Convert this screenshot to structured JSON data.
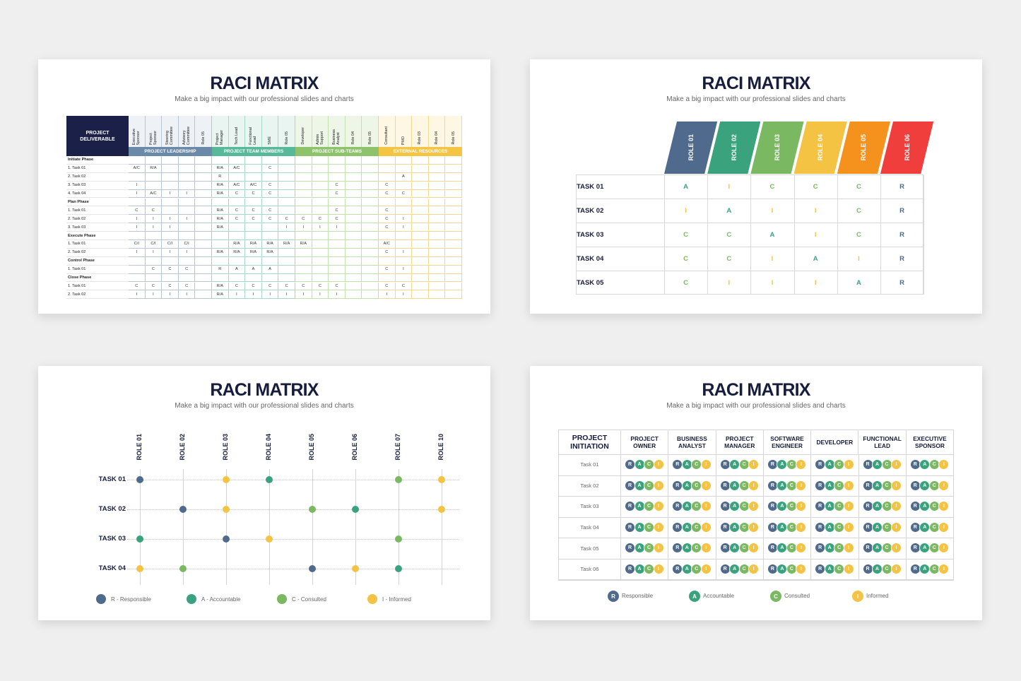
{
  "colors": {
    "navy": "#1b2049",
    "slate": "#4f6a8c",
    "teal": "#3aa37e",
    "green": "#7ab862",
    "yellow": "#f5c343",
    "orange": "#f5921d",
    "red": "#ef3e3c",
    "s1_grp_lead": "#6b8aaa",
    "s1_grp_team": "#58b99a",
    "s1_grp_sub": "#8ec36c",
    "s1_grp_ext": "#f4c545"
  },
  "slide1": {
    "title": "RACI MATRIX",
    "subtitle": "Make a big impact with our professional slides and charts",
    "corner_label": "PROJECT DELIVERABLE",
    "groups": [
      {
        "name": "PROJECT LEADERSHIP",
        "span": 5
      },
      {
        "name": "PROJECT TEAM MEMBERS",
        "span": 5
      },
      {
        "name": "PROJECT SUB-TEAMS",
        "span": 5
      },
      {
        "name": "EXTERNAL RESOURCES",
        "span": 5
      }
    ],
    "roles": [
      "Executive\nSponsor",
      "Project\nSponsor",
      "Steering\nCommittee",
      "Advisory\nCommittee",
      "Role 05",
      "Project\nManager",
      "Tech Lead",
      "Functional\nLead",
      "SME",
      "Role 05",
      "Developer",
      "Admin\nSupport",
      "Business\nAnalyst",
      "Role 04",
      "Role 05",
      "Consultant",
      "PMO",
      "Role 03",
      "Role 04",
      "Role 05"
    ],
    "rows": [
      {
        "task": "Initiate Phase",
        "phase": true,
        "cells": []
      },
      {
        "task": "1. Task 01",
        "cells": [
          "A/C",
          "R/A",
          "",
          "",
          "",
          "R/A",
          "A/C",
          "",
          "C",
          "",
          "",
          "",
          "",
          "",
          "",
          "",
          "",
          "",
          "",
          ""
        ]
      },
      {
        "task": "2. Task 02",
        "cells": [
          "",
          "",
          "",
          "",
          "",
          "R",
          "",
          "",
          "",
          "",
          "",
          "",
          "",
          "",
          "",
          "",
          "A",
          "",
          "",
          ""
        ]
      },
      {
        "task": "3. Task 03",
        "cells": [
          "I",
          "",
          "",
          "",
          "",
          "R/A",
          "A/C",
          "A/C",
          "C",
          "",
          "",
          "",
          "C",
          "",
          "",
          "C",
          "",
          "",
          "",
          ""
        ]
      },
      {
        "task": "4. Task 04",
        "cells": [
          "I",
          "A/C",
          "I",
          "I",
          "",
          "R/A",
          "C",
          "C",
          "C",
          "",
          "",
          "",
          "C",
          "",
          "",
          "C",
          "C",
          "",
          "",
          ""
        ]
      },
      {
        "task": "Plan Phase",
        "phase": true,
        "cells": []
      },
      {
        "task": "1. Task 01",
        "cells": [
          "C",
          "C",
          "",
          "",
          "",
          "R/A",
          "C",
          "C",
          "C",
          "",
          "",
          "",
          "C",
          "",
          "",
          "C",
          "",
          "",
          "",
          ""
        ]
      },
      {
        "task": "2. Task 02",
        "cells": [
          "I",
          "I",
          "I",
          "I",
          "",
          "R/A",
          "C",
          "C",
          "C",
          "C",
          "C",
          "C",
          "C",
          "",
          "",
          "C",
          "I",
          "",
          "",
          ""
        ]
      },
      {
        "task": "3. Task 03",
        "cells": [
          "I",
          "I",
          "I",
          "",
          "",
          "R/A",
          "",
          "",
          "",
          "I",
          "I",
          "I",
          "I",
          "",
          "",
          "C",
          "I",
          "",
          "",
          ""
        ]
      },
      {
        "task": "Execute Phase",
        "phase": true,
        "cells": []
      },
      {
        "task": "1. Task 01",
        "cells": [
          "C/I",
          "C/I",
          "C/I",
          "C/I",
          "",
          "",
          "R/A",
          "R/A",
          "R/A",
          "R/A",
          "R/A",
          "",
          "",
          "",
          "",
          "A/C",
          "",
          "",
          "",
          ""
        ]
      },
      {
        "task": "2. Task 02",
        "cells": [
          "I",
          "I",
          "I",
          "I",
          "",
          "R/A",
          "R/A",
          "R/A",
          "R/A",
          "",
          "",
          "",
          "",
          "",
          "",
          "C",
          "I",
          "",
          "",
          ""
        ]
      },
      {
        "task": "Control Phase",
        "phase": true,
        "cells": []
      },
      {
        "task": "1. Task 01",
        "cells": [
          "",
          "C",
          "C",
          "C",
          "",
          "R",
          "A",
          "A",
          "A",
          "",
          "",
          "",
          "",
          "",
          "",
          "C",
          "I",
          "",
          "",
          ""
        ]
      },
      {
        "task": "Close Phase",
        "phase": true,
        "cells": []
      },
      {
        "task": "1. Task 01",
        "cells": [
          "C",
          "C",
          "C",
          "C",
          "",
          "R/A",
          "C",
          "C",
          "C",
          "C",
          "C",
          "C",
          "C",
          "",
          "",
          "C",
          "C",
          "",
          "",
          ""
        ]
      },
      {
        "task": "2. Task 02",
        "cells": [
          "I",
          "I",
          "I",
          "I",
          "",
          "R/A",
          "I",
          "I",
          "I",
          "I",
          "I",
          "I",
          "I",
          "",
          "",
          "I",
          "I",
          "",
          "",
          ""
        ]
      }
    ]
  },
  "slide2": {
    "title": "RACI MATRIX",
    "subtitle": "Make a big impact with our professional slides and charts",
    "roles": [
      "ROLE 01",
      "ROLE 02",
      "ROLE 03",
      "ROLE 04",
      "ROLE 05",
      "ROLE 06"
    ],
    "tasks": [
      "TASK 01",
      "TASK 02",
      "TASK 03",
      "TASK 04",
      "TASK 05"
    ],
    "values": [
      [
        "A",
        "I",
        "C",
        "C",
        "C",
        "R"
      ],
      [
        "I",
        "A",
        "I",
        "I",
        "C",
        "R"
      ],
      [
        "C",
        "C",
        "A",
        "I",
        "C",
        "R"
      ],
      [
        "C",
        "C",
        "I",
        "A",
        "I",
        "R"
      ],
      [
        "C",
        "I",
        "I",
        "I",
        "A",
        "R"
      ]
    ]
  },
  "slide3": {
    "title": "RACI MATRIX",
    "subtitle": "Make a big impact with our professional slides and charts",
    "roles": [
      "ROLE 01",
      "ROLE 02",
      "ROLE 03",
      "ROLE 04",
      "ROLE 05",
      "ROLE 06",
      "ROLE 07",
      "ROLE 10"
    ],
    "tasks": [
      "TASK 01",
      "TASK 02",
      "TASK 03",
      "TASK 04"
    ],
    "dots": [
      [
        "R",
        "",
        "I",
        "A",
        "",
        "",
        "C",
        "I"
      ],
      [
        "",
        "R",
        "I",
        "",
        "C",
        "A",
        "",
        "I"
      ],
      [
        "A",
        "",
        "R",
        "I",
        "",
        "",
        "C",
        ""
      ],
      [
        "I",
        "C",
        "",
        "",
        "R",
        "I",
        "A",
        ""
      ]
    ],
    "legend": [
      {
        "key": "R",
        "label": "R - Responsible"
      },
      {
        "key": "A",
        "label": "A - Accountable"
      },
      {
        "key": "C",
        "label": "C - Consulted"
      },
      {
        "key": "I",
        "label": "I - Informed"
      }
    ]
  },
  "slide4": {
    "title": "RACI MATRIX",
    "subtitle": "Make a big impact with our professional slides and charts",
    "corner_label": "PROJECT INITIATION",
    "columns": [
      "PROJECT OWNER",
      "BUSINESS ANALYST",
      "PROJECT MANAGER",
      "SOFTWARE ENGINEER",
      "DEVELOPER",
      "FUNCTIONAL LEAD",
      "EXECUTIVE SPONSOR"
    ],
    "tasks": [
      "Task 01",
      "Task 02",
      "Task 03",
      "Task 04",
      "Task 05",
      "Task 06"
    ],
    "letters": [
      "R",
      "A",
      "C",
      "I"
    ],
    "legend": [
      {
        "key": "R",
        "label": "Responsible"
      },
      {
        "key": "A",
        "label": "Accountable"
      },
      {
        "key": "C",
        "label": "Consulted"
      },
      {
        "key": "I",
        "label": "Informed"
      }
    ]
  }
}
